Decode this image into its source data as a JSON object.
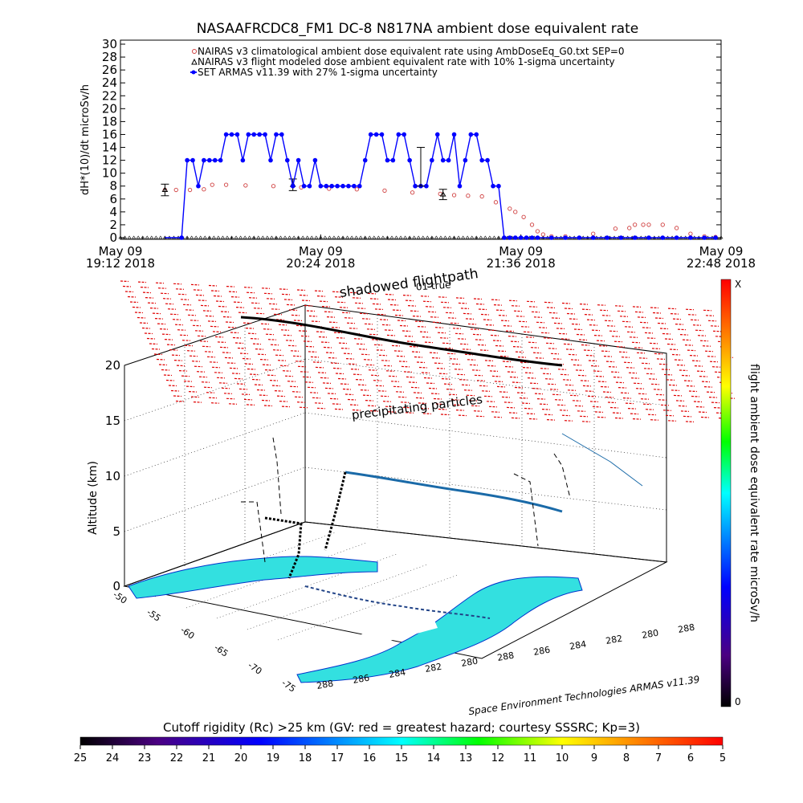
{
  "chart_data": [
    {
      "type": "scatter",
      "title": "NASAAFRCDC8_FM1 DC-8    N817NA ambient dose equivalent rate",
      "ylabel": "dH*(10)/dt microSv/h",
      "ylim": [
        0,
        30
      ],
      "yticks": [
        "0",
        "2",
        "4",
        "6",
        "8",
        "10",
        "12",
        "14",
        "16",
        "18",
        "20",
        "22",
        "24",
        "26",
        "28",
        "30"
      ],
      "xlim_minutes": [
        0,
        216
      ],
      "xtick_labels": [
        {
          "line1": "May 09",
          "line2": "19:12 2018",
          "t": 0
        },
        {
          "line1": "May 09",
          "line2": "20:24 2018",
          "t": 72
        },
        {
          "line1": "May 09",
          "line2": "21:36 2018",
          "t": 144
        },
        {
          "line1": "May 09",
          "line2": "22:48 2018",
          "t": 216
        }
      ],
      "legend": [
        "NAIRAS v3 climatological ambient dose equivalent rate using AmbDoseEq_G0.txt SEP=0",
        "NAIRAS v3 flight modeled dose ambient equivalent rate with 10% 1-sigma uncertainty",
        "SET ARMAS v11.39 with 27% 1-sigma uncertainty"
      ],
      "series": [
        {
          "name": "NAIRAS v3 climatological ambient dose equivalent rate using AmbDoseEq_G0.txt SEP=0",
          "color": "#d04040",
          "x": [
            16,
            20,
            25,
            30,
            33,
            38,
            45,
            55,
            65,
            75,
            85,
            95,
            105,
            115,
            120,
            125,
            130,
            135,
            140,
            142,
            145,
            148,
            150,
            152,
            155,
            160,
            170,
            178,
            183,
            185,
            188,
            190,
            195,
            200,
            205,
            210,
            214
          ],
          "y": [
            7.4,
            7.4,
            7.4,
            7.5,
            8.2,
            8.2,
            8.1,
            8,
            7.8,
            7.6,
            7.5,
            7.3,
            7,
            6.8,
            6.6,
            6.5,
            6.4,
            5.5,
            4.5,
            4,
            3.2,
            2,
            1,
            0.5,
            0.2,
            0.2,
            0.6,
            1.4,
            1.5,
            2,
            2,
            2,
            2,
            1.5,
            0.6,
            0.2,
            0.1
          ]
        },
        {
          "name": "NAIRAS v3 flight modeled dose ambient equivalent rate with 10% 1-sigma uncertainty",
          "color": "#000000",
          "x": [
            16,
            62,
            116
          ],
          "y": [
            7.4,
            8.2,
            6.7
          ],
          "err": [
            0.9,
            0.9,
            0.8
          ],
          "baseline": 0
        },
        {
          "name": "SET ARMAS v11.39 with 27% 1-sigma uncertainty",
          "color": "#0000ff",
          "x": [
            22,
            24,
            26,
            28,
            30,
            32,
            34,
            36,
            38,
            40,
            42,
            44,
            46,
            48,
            50,
            52,
            54,
            56,
            58,
            60,
            62,
            64,
            66,
            68,
            70,
            72,
            74,
            76,
            78,
            80,
            82,
            84,
            86,
            88,
            90,
            92,
            94,
            96,
            98,
            100,
            102,
            104,
            106,
            108,
            110,
            112,
            114,
            116,
            118,
            120,
            122,
            124,
            126,
            128,
            130,
            132,
            134,
            136,
            138,
            140,
            142,
            144,
            146,
            148,
            150,
            155,
            160,
            165,
            170,
            175,
            180,
            185,
            190,
            195,
            200,
            205,
            210,
            214
          ],
          "y": [
            0,
            12,
            12,
            8,
            12,
            12,
            12,
            12,
            16,
            16,
            16,
            12,
            16,
            16,
            16,
            16,
            12,
            16,
            16,
            12,
            8,
            12,
            8,
            8,
            12,
            8,
            8,
            8,
            8,
            8,
            8,
            8,
            8,
            12,
            16,
            16,
            16,
            12,
            12,
            16,
            16,
            12,
            8,
            8,
            8,
            12,
            16,
            12,
            12,
            16,
            8,
            12,
            16,
            16,
            12,
            12,
            8,
            8,
            0,
            0,
            0,
            0,
            0,
            0,
            0,
            0,
            0,
            0,
            0,
            0,
            0,
            0,
            0,
            0,
            0,
            0,
            0,
            0
          ],
          "error_x": [
            108
          ],
          "error_y": [
            11
          ],
          "error_err": [
            3
          ]
        }
      ]
    },
    {
      "type": "other",
      "kind": "3d-flight-path",
      "title": "shadowed flightpath",
      "subtitle": "01 true",
      "annotation": "precipitating particles",
      "zlabel": "Altitude (km)",
      "zticks": [
        "0",
        "5",
        "10",
        "15",
        "20"
      ],
      "lat_ticks": [
        "-50",
        "-55",
        "-60",
        "-65",
        "-70",
        "-75"
      ],
      "lon_ticks": [
        "288",
        "286",
        "284",
        "282",
        "280",
        "288",
        "286",
        "284",
        "282",
        "280",
        "288"
      ],
      "credit": "Space Environment Technologies ARMAS v11.39",
      "colorbar_label": "flight ambient dose equivalent rate microSv/h",
      "colorbar_top": "X",
      "colorbar_bottom": "0"
    },
    {
      "type": "other",
      "kind": "colorbar",
      "title": "Cutoff rigidity (Rc) >25 km (GV: red = greatest hazard; courtesy SSSRC; Kp=3)",
      "ticks": [
        "25",
        "24",
        "23",
        "22",
        "21",
        "20",
        "19",
        "18",
        "17",
        "16",
        "15",
        "14",
        "13",
        "12",
        "11",
        "10",
        "9",
        "8",
        "7",
        "6",
        "5"
      ]
    }
  ]
}
